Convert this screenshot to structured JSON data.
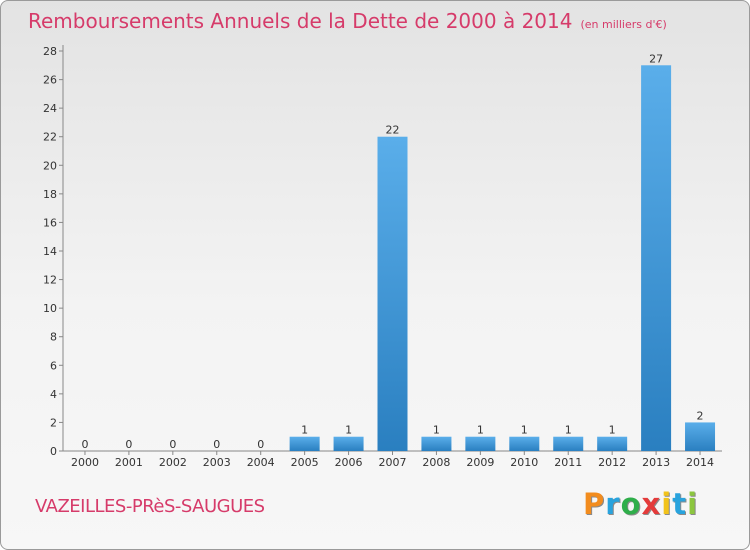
{
  "header": {
    "title": "Remboursements Annuels de la Dette de 2000 à 2014",
    "subtitle": "(en milliers d'€)"
  },
  "footer": {
    "commune": "VAZEILLES-PRèS-SAUGUES",
    "logo_text": "Proxiti"
  },
  "colors": {
    "title": "#d63b6a",
    "bar_light": "#5aaeea",
    "bar_dark": "#2a7fc0",
    "logo": [
      "#f28c1e",
      "#29a3dd",
      "#2fae4a",
      "#e43b3b",
      "#f2c31b",
      "#29a3dd",
      "#8cc63f"
    ]
  },
  "chart_data": {
    "type": "bar",
    "categories": [
      "2000",
      "2001",
      "2002",
      "2003",
      "2004",
      "2005",
      "2006",
      "2007",
      "2008",
      "2009",
      "2010",
      "2011",
      "2012",
      "2013",
      "2014"
    ],
    "values": [
      0,
      0,
      0,
      0,
      0,
      1,
      1,
      22,
      1,
      1,
      1,
      1,
      1,
      27,
      2
    ],
    "data_labels": [
      "0",
      "0",
      "0",
      "0",
      "0",
      "1",
      "1",
      "22",
      "1",
      "1",
      "1",
      "1",
      "1",
      "27",
      "2"
    ],
    "title": "Remboursements Annuels de la Dette de 2000 à 2014",
    "xlabel": "",
    "ylabel": "",
    "ylim": [
      0,
      28
    ],
    "yticks": [
      0,
      2,
      4,
      6,
      8,
      10,
      12,
      14,
      16,
      18,
      20,
      22,
      24,
      26,
      28
    ],
    "grid": false,
    "legend": "none"
  }
}
